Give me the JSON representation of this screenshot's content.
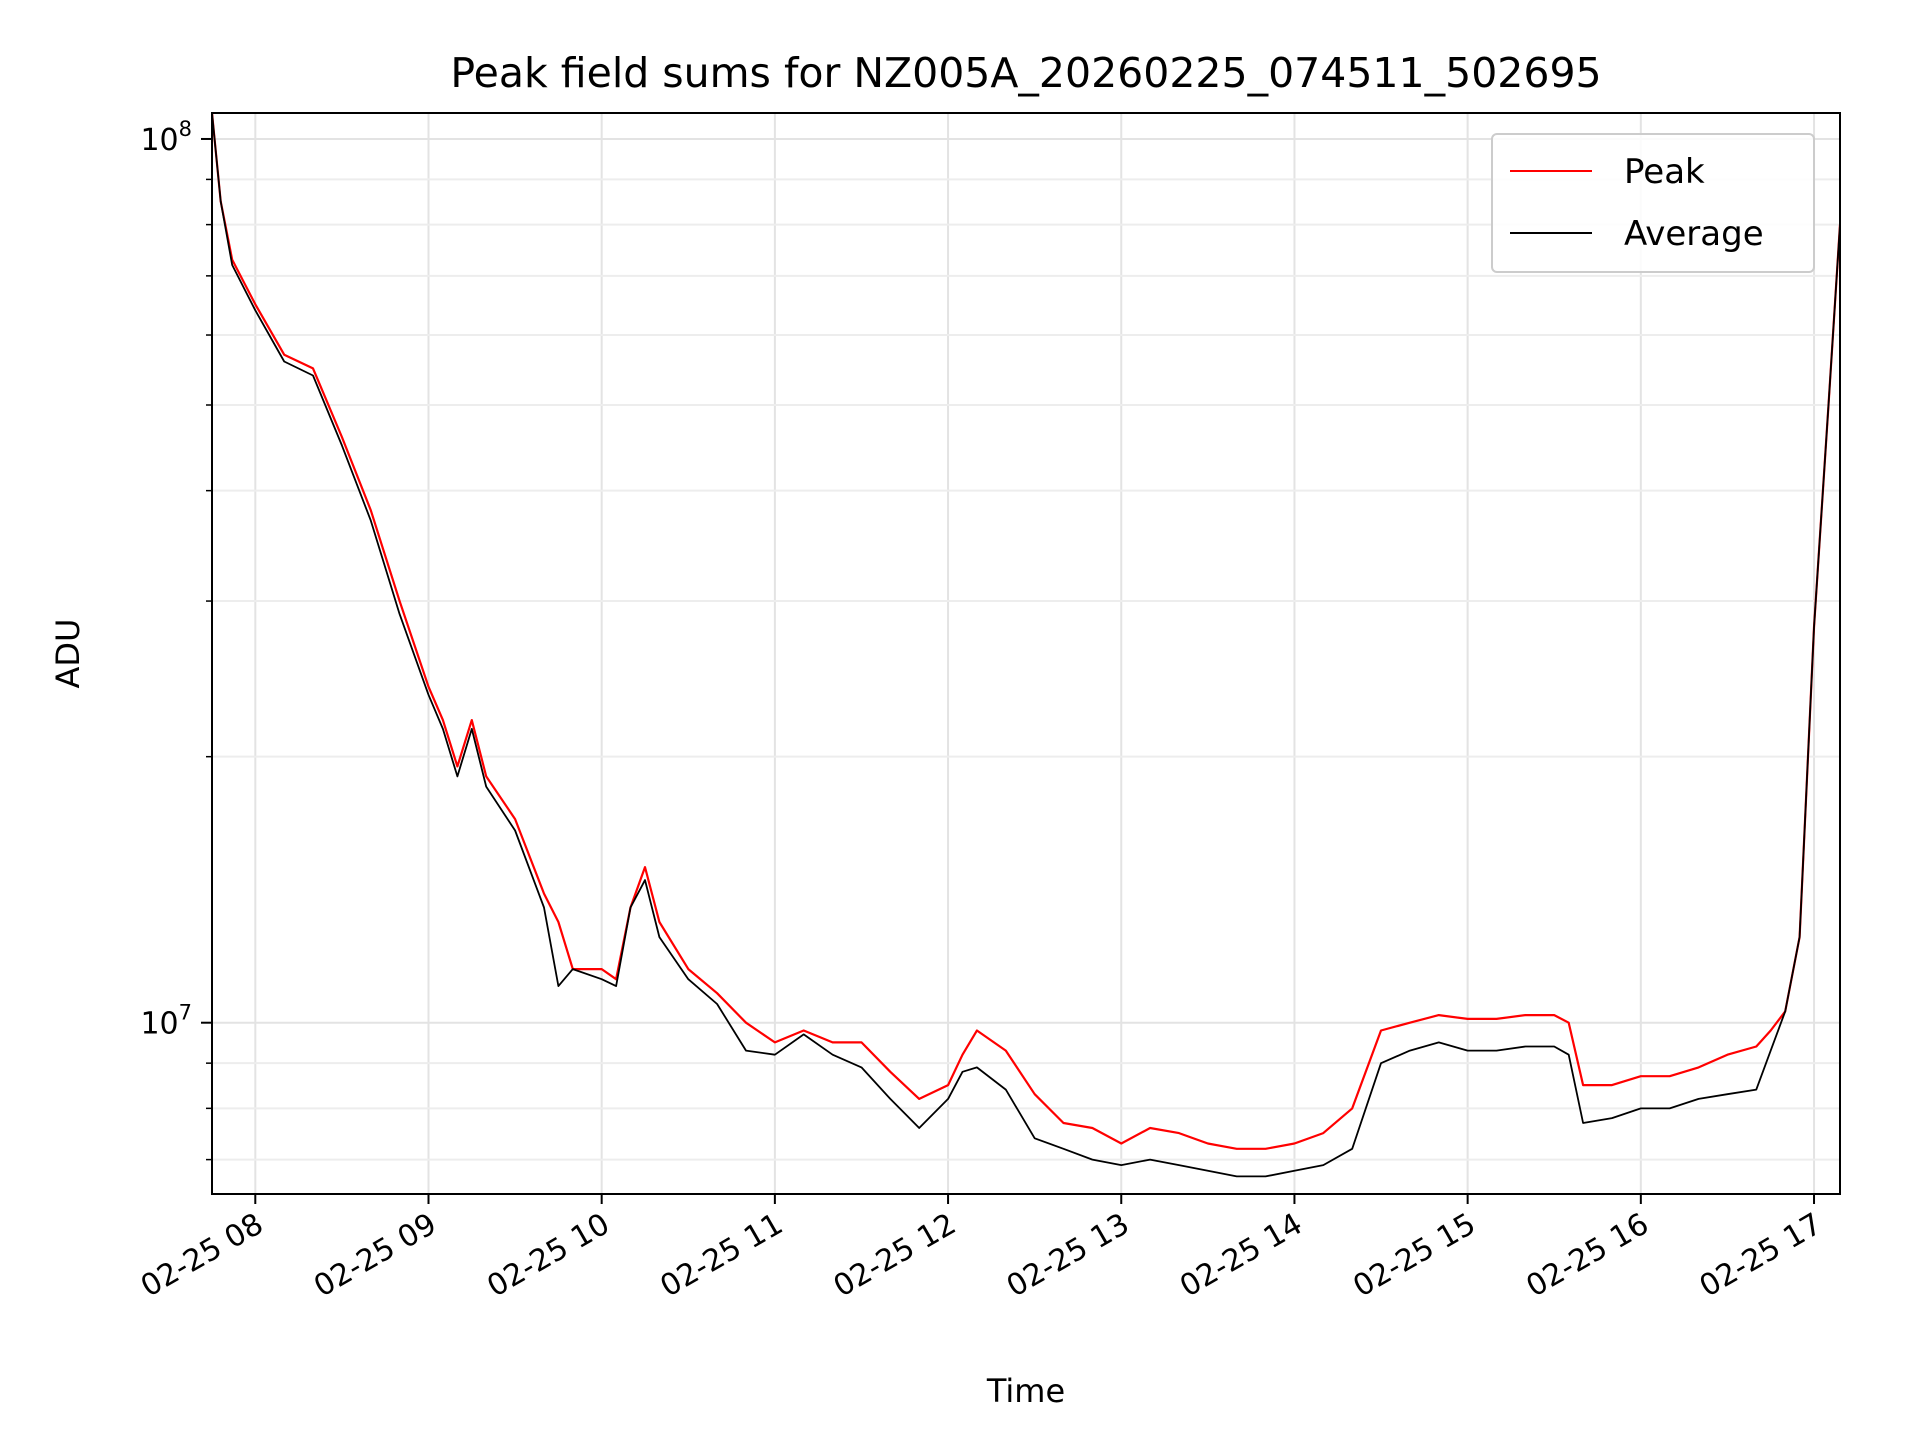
{
  "chart_data": {
    "type": "line",
    "title": "Peak field sums for NZ005A_20260225_074511_502695",
    "xlabel": "Time",
    "ylabel": "ADU",
    "y_scale": "log",
    "ylim": [
      6400000,
      107000000
    ],
    "xlim": [
      "2026-02-25 07:45",
      "2026-02-25 17:09"
    ],
    "x_ticks": [
      "02-25 08",
      "02-25 09",
      "02-25 10",
      "02-25 11",
      "02-25 12",
      "02-25 13",
      "02-25 14",
      "02-25 15",
      "02-25 16",
      "02-25 17"
    ],
    "y_major_ticks": [
      {
        "value": 10000000,
        "base": "10",
        "exp": "7"
      },
      {
        "value": 100000000,
        "base": "10",
        "exp": "8"
      }
    ],
    "grid": true,
    "legend_position": "top-right",
    "x": [
      "07:45",
      "07:48",
      "07:52",
      "08:00",
      "08:10",
      "08:20",
      "08:30",
      "08:40",
      "08:50",
      "09:00",
      "09:05",
      "09:10",
      "09:15",
      "09:20",
      "09:30",
      "09:40",
      "09:45",
      "09:50",
      "10:00",
      "10:05",
      "10:10",
      "10:15",
      "10:20",
      "10:30",
      "10:40",
      "10:50",
      "11:00",
      "11:10",
      "11:20",
      "11:30",
      "11:40",
      "11:50",
      "12:00",
      "12:05",
      "12:10",
      "12:20",
      "12:30",
      "12:40",
      "12:50",
      "13:00",
      "13:10",
      "13:20",
      "13:30",
      "13:40",
      "13:50",
      "14:00",
      "14:10",
      "14:20",
      "14:30",
      "14:40",
      "14:50",
      "15:00",
      "15:10",
      "15:20",
      "15:30",
      "15:35",
      "15:40",
      "15:50",
      "16:00",
      "16:10",
      "16:20",
      "16:30",
      "16:40",
      "16:45",
      "16:50",
      "16:55",
      "17:00",
      "17:05",
      "17:09"
    ],
    "series": [
      {
        "name": "Peak",
        "color": "#ff0000",
        "values": [
          107000000,
          85000000,
          73000000,
          65000000,
          57000000,
          55000000,
          46000000,
          38000000,
          30000000,
          24000000,
          22000000,
          19500000,
          22000000,
          19000000,
          17000000,
          14000000,
          13000000,
          11500000,
          11500000,
          11200000,
          13500000,
          15000000,
          13000000,
          11500000,
          10800000,
          10000000,
          9500000,
          9800000,
          9500000,
          9500000,
          8800000,
          8200000,
          8500000,
          9200000,
          9800000,
          9300000,
          8300000,
          7700000,
          7600000,
          7300000,
          7600000,
          7500000,
          7300000,
          7200000,
          7200000,
          7300000,
          7500000,
          8000000,
          9800000,
          10000000,
          10200000,
          10100000,
          10100000,
          10200000,
          10200000,
          10000000,
          8500000,
          8500000,
          8700000,
          8700000,
          8900000,
          9200000,
          9400000,
          9800000,
          10300000,
          12500000,
          28000000,
          50000000,
          80000000
        ]
      },
      {
        "name": "Average",
        "color": "#000000",
        "values": [
          107000000,
          85000000,
          72000000,
          64000000,
          56000000,
          54000000,
          45000000,
          37000000,
          29000000,
          23500000,
          21500000,
          19000000,
          21500000,
          18500000,
          16500000,
          13500000,
          11000000,
          11500000,
          11200000,
          11000000,
          13500000,
          14500000,
          12500000,
          11200000,
          10500000,
          9300000,
          9200000,
          9700000,
          9200000,
          8900000,
          8200000,
          7600000,
          8200000,
          8800000,
          8900000,
          8400000,
          7400000,
          7200000,
          7000000,
          6900000,
          7000000,
          6900000,
          6800000,
          6700000,
          6700000,
          6800000,
          6900000,
          7200000,
          9000000,
          9300000,
          9500000,
          9300000,
          9300000,
          9400000,
          9400000,
          9200000,
          7700000,
          7800000,
          8000000,
          8000000,
          8200000,
          8300000,
          8400000,
          9300000,
          10300000,
          12500000,
          28000000,
          50000000,
          80000000
        ]
      }
    ]
  }
}
